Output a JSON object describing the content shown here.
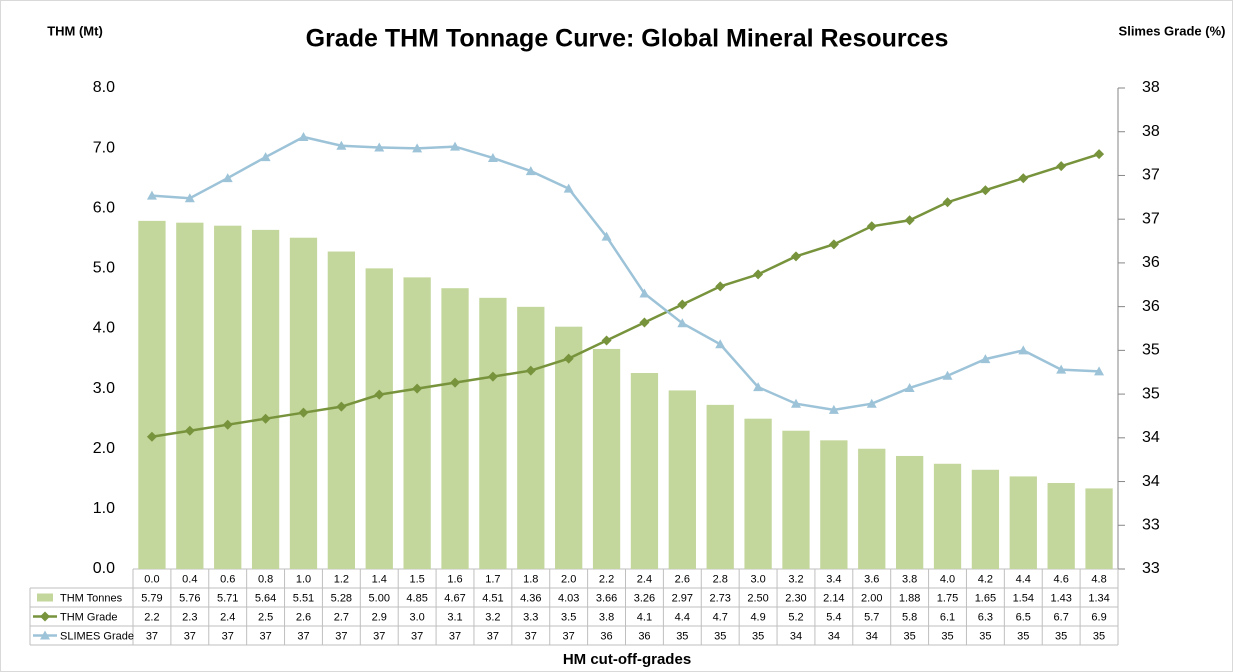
{
  "chart_data": {
    "type": "bar-line",
    "title": "Grade THM Tonnage Curve:  Global Mineral Resources",
    "y_label": "THM (Mt)",
    "y2_label": "Slimes Grade (%)",
    "x_label": "HM cut-off-grades",
    "categories": [
      "0.0",
      "0.4",
      "0.6",
      "0.8",
      "1.0",
      "1.2",
      "1.4",
      "1.5",
      "1.6",
      "1.7",
      "1.8",
      "2.0",
      "2.2",
      "2.4",
      "2.6",
      "2.8",
      "3.0",
      "3.2",
      "3.4",
      "3.6",
      "3.8",
      "4.0",
      "4.2",
      "4.4",
      "4.6",
      "4.8"
    ],
    "series": [
      {
        "name": "THM Tonnes",
        "type": "bar",
        "color": "#c3d69b",
        "values": [
          5.79,
          5.76,
          5.71,
          5.64,
          5.51,
          5.28,
          5.0,
          4.85,
          4.67,
          4.51,
          4.36,
          4.03,
          3.66,
          3.26,
          2.97,
          2.73,
          2.5,
          2.3,
          2.14,
          2.0,
          1.88,
          1.75,
          1.65,
          1.54,
          1.43,
          1.34
        ],
        "value_labels": [
          "5.79",
          "5.76",
          "5.71",
          "5.64",
          "5.51",
          "5.28",
          "5.00",
          "4.85",
          "4.67",
          "4.51",
          "4.36",
          "4.03",
          "3.66",
          "3.26",
          "2.97",
          "2.73",
          "2.50",
          "2.30",
          "2.14",
          "2.00",
          "1.88",
          "1.75",
          "1.65",
          "1.54",
          "1.43",
          "1.34"
        ]
      },
      {
        "name": "THM Grade",
        "type": "line",
        "marker": "diamond",
        "color": "#77933c",
        "values": [
          2.2,
          2.3,
          2.4,
          2.5,
          2.6,
          2.7,
          2.9,
          3.0,
          3.1,
          3.2,
          3.3,
          3.5,
          3.8,
          4.1,
          4.4,
          4.7,
          4.9,
          5.2,
          5.4,
          5.7,
          5.8,
          6.1,
          6.3,
          6.5,
          6.7,
          6.9
        ],
        "value_labels": [
          "2.2",
          "2.3",
          "2.4",
          "2.5",
          "2.6",
          "2.7",
          "2.9",
          "3.0",
          "3.1",
          "3.2",
          "3.3",
          "3.5",
          "3.8",
          "4.1",
          "4.4",
          "4.7",
          "4.9",
          "5.2",
          "5.4",
          "5.7",
          "5.8",
          "6.1",
          "6.3",
          "6.5",
          "6.7",
          "6.9"
        ]
      },
      {
        "name": "SLIMES Grade",
        "type": "line",
        "marker": "triangle",
        "axis": "y2",
        "color": "#9dc3d8",
        "values": [
          36.77,
          36.74,
          36.97,
          37.21,
          37.44,
          37.34,
          37.32,
          37.31,
          37.33,
          37.2,
          37.05,
          36.85,
          36.3,
          35.65,
          35.31,
          35.07,
          34.58,
          34.39,
          34.32,
          34.39,
          34.57,
          34.71,
          34.9,
          35.0,
          34.78,
          34.76
        ],
        "value_labels": [
          "37",
          "37",
          "37",
          "37",
          "37",
          "37",
          "37",
          "37",
          "37",
          "37",
          "37",
          "37",
          "36",
          "36",
          "35",
          "35",
          "35",
          "34",
          "34",
          "34",
          "35",
          "35",
          "35",
          "35",
          "35",
          "35"
        ]
      }
    ],
    "ylim": [
      0,
      8
    ],
    "yticks": [
      {
        "value": 0,
        "label": "0.0"
      },
      {
        "value": 1,
        "label": "1.0"
      },
      {
        "value": 2,
        "label": "2.0"
      },
      {
        "value": 3,
        "label": "3.0"
      },
      {
        "value": 4,
        "label": "4.0"
      },
      {
        "value": 5,
        "label": "5.0"
      },
      {
        "value": 6,
        "label": "6.0"
      },
      {
        "value": 7,
        "label": "7.0"
      },
      {
        "value": 8,
        "label": "8.0"
      }
    ],
    "y2lim": [
      32.5,
      38
    ],
    "y2ticks": [
      {
        "value": 32.5,
        "label": "33"
      },
      33,
      {
        "value": 33.5,
        "label": "34"
      },
      34,
      {
        "value": 34.5,
        "label": "35"
      },
      35,
      {
        "value": 35.5,
        "label": "36"
      },
      36,
      {
        "value": 36.5,
        "label": "37"
      },
      37,
      {
        "value": 37.5,
        "label": "38"
      },
      38
    ],
    "grid": false
  }
}
